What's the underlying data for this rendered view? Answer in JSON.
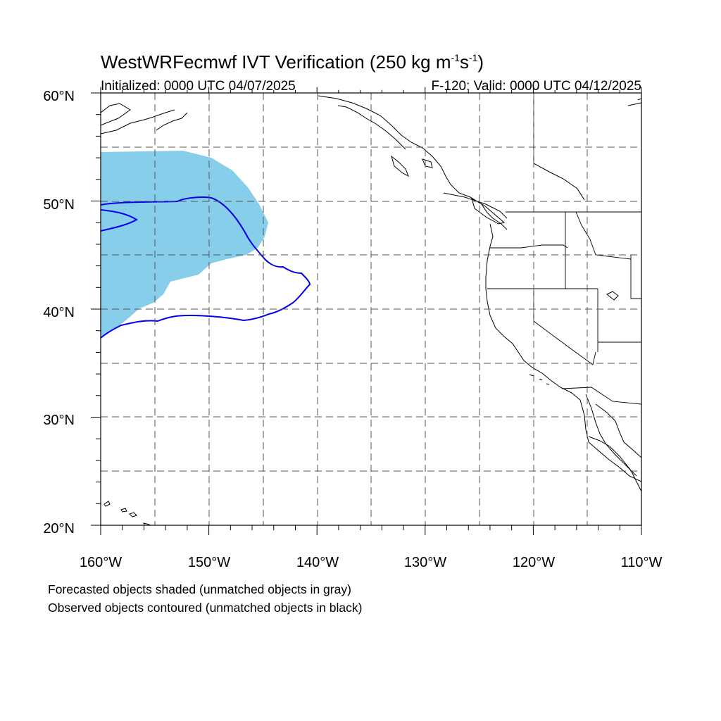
{
  "map": {
    "title_main": "WestWRFecmwf IVT Verification (250 kg m",
    "title_exp1": "-1",
    "title_mid": "s",
    "title_exp2": "-1",
    "title_close": ")",
    "initialized": "Initialized: 0000 UTC 04/07/2025",
    "valid": "F-120: Valid: 0000 UTC 04/12/2025",
    "lon_labels": [
      "160°W",
      "150°W",
      "140°W",
      "130°W",
      "120°W",
      "110°W"
    ],
    "lat_labels": [
      "60°N",
      "50°N",
      "40°N",
      "30°N",
      "20°N"
    ],
    "lon_range": [
      -160,
      -110
    ],
    "lat_range": [
      20,
      60
    ],
    "forecast_color": "#87ceeb",
    "observed_color": "#0000ee",
    "note_forecast": "Forecasted objects shaded (unmatched objects in gray)",
    "note_observed": "Observed objects contoured (unmatched objects in black)"
  }
}
